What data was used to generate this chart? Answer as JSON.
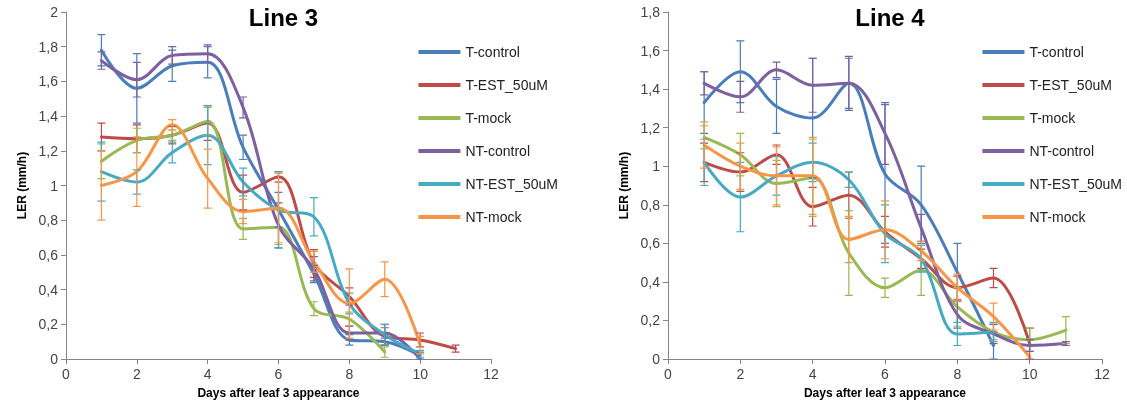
{
  "chart_data": [
    {
      "type": "line",
      "title": "Line 3",
      "xlabel": "Days after leaf 3 appearance",
      "ylabel": "LER (mm/h)",
      "xlim": [
        0,
        12
      ],
      "xticks": [
        0,
        2,
        4,
        6,
        8,
        10,
        12
      ],
      "ylim": [
        0,
        2
      ],
      "yticks": [
        0,
        {
          "value": 0.2,
          "label": "0,2"
        },
        {
          "value": 0.4,
          "label": "0,4"
        },
        {
          "value": 0.6,
          "label": "0,6"
        },
        {
          "value": 0.8,
          "label": "0,8"
        },
        1,
        {
          "value": 1.2,
          "label": "1,2"
        },
        {
          "value": 1.4,
          "label": "1,4"
        },
        {
          "value": 1.6,
          "label": "1,6"
        },
        {
          "value": 1.8,
          "label": "1,8"
        },
        2
      ],
      "grid": false,
      "legend": "top right",
      "marker": "none",
      "line_style": "solid",
      "series": [
        {
          "name": "T-control",
          "color": "#4a7ebb",
          "x": [
            1,
            2,
            3,
            4,
            5,
            6,
            7,
            8,
            9,
            10
          ],
          "values": [
            1.78,
            1.56,
            1.69,
            1.71,
            1.22,
            0.86,
            0.49,
            0.11,
            0.1,
            0.02
          ],
          "errors": [
            0.09,
            0.2,
            0.09,
            0.09,
            0.07,
            0.1,
            0.05,
            0.03,
            0.02,
            0.02
          ]
        },
        {
          "name": "T-EST_50uM",
          "color": "#be4b48",
          "x": [
            1,
            2,
            3,
            4,
            5,
            6,
            7,
            8,
            9,
            10,
            11
          ],
          "values": [
            1.28,
            1.27,
            1.29,
            1.36,
            0.96,
            1.05,
            0.55,
            0.36,
            0.13,
            0.11,
            0.06
          ],
          "errors": [
            0.08,
            0.08,
            0.05,
            0.1,
            0.1,
            0.03,
            0.08,
            0.05,
            0.05,
            0.04,
            0.02
          ]
        },
        {
          "name": "T-mock",
          "color": "#98b954",
          "x": [
            1,
            2,
            3,
            4,
            5,
            6,
            7,
            8,
            9
          ],
          "values": [
            1.14,
            1.26,
            1.29,
            1.37,
            0.75,
            0.76,
            0.29,
            0.23,
            0.04
          ],
          "errors": [
            0.1,
            0.07,
            0.03,
            0.08,
            0.06,
            0.1,
            0.04,
            0.04,
            0.03
          ]
        },
        {
          "name": "NT-control",
          "color": "#7d60a0",
          "x": [
            1,
            2,
            3,
            4,
            5,
            6,
            7,
            8,
            9,
            10
          ],
          "values": [
            1.72,
            1.61,
            1.75,
            1.76,
            1.45,
            0.77,
            0.52,
            0.15,
            0.15,
            0
          ],
          "errors": [
            0.05,
            0.1,
            0.05,
            0.05,
            0.06,
            0.13,
            0.07,
            0.04,
            0.05,
            null
          ]
        },
        {
          "name": "NT-EST_50uM",
          "color": "#46aac5",
          "x": [
            1,
            2,
            3,
            4,
            5,
            6,
            7,
            8,
            9,
            10
          ],
          "values": [
            1.08,
            1.02,
            1.19,
            1.29,
            1.02,
            0.86,
            0.82,
            0.32,
            0.14,
            0.03
          ],
          "errors": [
            0.17,
            0.07,
            0.06,
            0.17,
            0.08,
            0.22,
            0.11,
            0.06,
            0.06,
            0.02
          ]
        },
        {
          "name": "NT-mock",
          "color": "#f79646",
          "x": [
            1,
            2,
            3,
            4,
            5,
            6,
            7,
            8,
            9,
            10
          ],
          "values": [
            1,
            1.08,
            1.35,
            1.04,
            0.85,
            0.87,
            0.56,
            0.32,
            0.46,
            0.08
          ],
          "errors": [
            0.2,
            0.2,
            0.03,
            0.17,
            0.07,
            0.2,
            0.06,
            0.2,
            0.1,
            0.05
          ]
        }
      ]
    },
    {
      "type": "line",
      "title": "Line 4",
      "xlabel": "Days after leaf 3 appearance",
      "ylabel": "LER (mm/h)",
      "xlim": [
        0,
        12
      ],
      "xticks": [
        0,
        2,
        4,
        6,
        8,
        10,
        12
      ],
      "ylim": [
        0,
        1.8
      ],
      "yticks": [
        0,
        {
          "value": 0.2,
          "label": "0,2"
        },
        {
          "value": 0.4,
          "label": "0,4"
        },
        {
          "value": 0.6,
          "label": "0,6"
        },
        {
          "value": 0.8,
          "label": "0,8"
        },
        1,
        {
          "value": 1.2,
          "label": "1,2"
        },
        {
          "value": 1.4,
          "label": "1,4"
        },
        {
          "value": 1.6,
          "label": "1,6"
        },
        {
          "value": 1.8,
          "label": "1,8"
        }
      ],
      "grid": false,
      "legend": "top right",
      "marker": "none",
      "line_style": "solid",
      "series": [
        {
          "name": "T-control",
          "color": "#4a7ebb",
          "x": [
            1,
            2,
            3,
            4,
            5,
            6,
            7,
            8,
            9
          ],
          "values": [
            1.33,
            1.49,
            1.31,
            1.25,
            1.43,
            0.96,
            0.8,
            0.45,
            0.07
          ],
          "errors": [
            0.16,
            0.16,
            0.14,
            0.31,
            0.13,
            0.36,
            0.2,
            0.15,
            0.07
          ]
        },
        {
          "name": "T-EST_50uM",
          "color": "#be4b48",
          "x": [
            1,
            2,
            3,
            4,
            5,
            6,
            7,
            8,
            9,
            10
          ],
          "values": [
            1.02,
            0.97,
            1.06,
            0.79,
            0.85,
            0.66,
            0.52,
            0.37,
            0.42,
            0.08
          ],
          "errors": [
            0.1,
            0.1,
            0.05,
            0.1,
            0.12,
            0.08,
            0.05,
            0.06,
            0.05,
            0.08
          ]
        },
        {
          "name": "T-mock",
          "color": "#98b954",
          "x": [
            1,
            2,
            3,
            4,
            5,
            6,
            7,
            8,
            9,
            10,
            11
          ],
          "values": [
            1.15,
            1.06,
            0.91,
            0.94,
            0.55,
            0.37,
            0.46,
            0.27,
            0.14,
            0.1,
            0.15
          ],
          "errors": [
            0.06,
            0.11,
            0.12,
            0.2,
            0.22,
            0.05,
            0.13,
            0.1,
            0.04,
            0.06,
            0.07
          ]
        },
        {
          "name": "NT-control",
          "color": "#7d60a0",
          "x": [
            1,
            2,
            3,
            4,
            5,
            6,
            7,
            8,
            9,
            10,
            11
          ],
          "values": [
            1.43,
            1.36,
            1.5,
            1.42,
            1.43,
            1.17,
            0.68,
            0.23,
            0.13,
            0.07,
            0.08
          ],
          "errors": [
            0.06,
            0.08,
            0.04,
            0.14,
            0.14,
            0.16,
            0.07,
            0.07,
            0.05,
            0.03,
            0.01
          ]
        },
        {
          "name": "NT-EST_50uM",
          "color": "#46aac5",
          "x": [
            1,
            2,
            3,
            4,
            5,
            6,
            7,
            8,
            9
          ],
          "values": [
            1.02,
            0.84,
            0.95,
            1.02,
            0.93,
            0.65,
            0.52,
            0.13,
            0.14
          ],
          "errors": [
            0.12,
            0.18,
            0.1,
            0.1,
            0.04,
            0.15,
            0.07,
            0.06,
            0.05
          ]
        },
        {
          "name": "NT-mock",
          "color": "#f79646",
          "x": [
            1,
            2,
            3,
            4,
            5,
            6,
            7,
            8,
            9,
            10
          ],
          "values": [
            1.11,
            1,
            0.95,
            0.95,
            0.62,
            0.67,
            0.56,
            0.37,
            0.22,
            0.01
          ],
          "errors": [
            0.12,
            0.12,
            0.15,
            0.2,
            0.12,
            0.15,
            0.05,
            0.07,
            0.07,
            null
          ]
        }
      ]
    }
  ]
}
